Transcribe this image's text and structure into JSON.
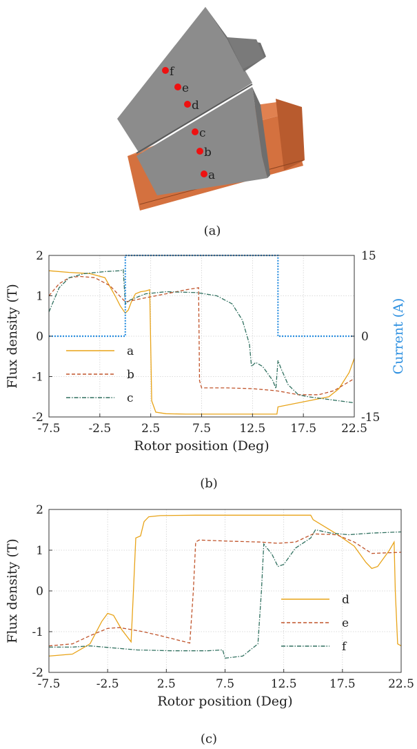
{
  "panel_a": {
    "caption": "(a)",
    "points": [
      "a",
      "b",
      "c",
      "d",
      "e",
      "f"
    ]
  },
  "panel_b": {
    "caption": "(b)"
  },
  "panel_c": {
    "caption": "(c)"
  },
  "chart_data": [
    {
      "type": "line",
      "panel": "b",
      "xlabel": "Rotor position (Deg)",
      "ylabel": "Flux density (T)",
      "y2label": "Current (A)",
      "xlim": [
        -7.5,
        22.5
      ],
      "ylim": [
        -2,
        2
      ],
      "y2lim": [
        -15,
        15
      ],
      "xticks": [
        "-7.5",
        "-2.5",
        "2.5",
        "7.5",
        "12.5",
        "17.5",
        "22.5"
      ],
      "yticks": [
        "-2",
        "-1",
        "0",
        "1",
        "2"
      ],
      "y2ticks": [
        "-15",
        "0",
        "15"
      ],
      "grid": true,
      "legend_position": "bottom-left",
      "series": [
        {
          "name": "a",
          "color": "#e8a317",
          "dash": "solid",
          "x": [
            -7.5,
            -5.5,
            -3.5,
            -2.0,
            -1.0,
            -0.5,
            0.0,
            0.3,
            0.6,
            1.0,
            1.5,
            2.0,
            2.4,
            2.6,
            3.0,
            4.0,
            6.0,
            9.0,
            12.0,
            14.9,
            15.0,
            18.0,
            20.0,
            21.0,
            22.0,
            22.5
          ],
          "y": [
            1.62,
            1.58,
            1.55,
            1.45,
            1.0,
            0.75,
            0.57,
            0.65,
            0.85,
            1.05,
            1.1,
            1.12,
            1.15,
            -1.6,
            -1.88,
            -1.92,
            -1.93,
            -1.93,
            -1.93,
            -1.93,
            -1.75,
            -1.6,
            -1.5,
            -1.3,
            -0.9,
            -0.55
          ]
        },
        {
          "name": "b",
          "color": "#c0532a",
          "dash": "dashed",
          "x": [
            -7.5,
            -6.5,
            -5.5,
            -4.5,
            -3.0,
            -1.5,
            0.0,
            2.0,
            4.0,
            6.0,
            7.2,
            7.3,
            7.5,
            10.0,
            12.5,
            14.8,
            15.5,
            17.0,
            19.0,
            20.5,
            22.5
          ],
          "y": [
            1.0,
            1.3,
            1.45,
            1.48,
            1.45,
            1.25,
            0.85,
            0.95,
            1.05,
            1.15,
            1.2,
            -1.1,
            -1.28,
            -1.28,
            -1.3,
            -1.35,
            -1.38,
            -1.45,
            -1.45,
            -1.35,
            -1.05
          ]
        },
        {
          "name": "c",
          "color": "#2e6f5e",
          "dash": "dashdot",
          "x": [
            -7.5,
            -6.5,
            -5.5,
            -4.0,
            -2.0,
            -0.5,
            -0.2,
            0.0,
            0.5,
            2.0,
            4.0,
            7.0,
            9.0,
            10.5,
            11.5,
            12.2,
            12.4,
            12.8,
            13.5,
            14.5,
            14.8,
            15.0,
            15.3,
            16.0,
            17.0,
            18.0,
            19.5,
            21.0,
            22.5
          ],
          "y": [
            0.6,
            1.2,
            1.45,
            1.55,
            1.6,
            1.62,
            1.65,
            0.8,
            0.9,
            1.05,
            1.1,
            1.08,
            1.0,
            0.8,
            0.4,
            -0.2,
            -0.75,
            -0.65,
            -0.75,
            -1.1,
            -1.3,
            -0.6,
            -0.8,
            -1.2,
            -1.45,
            -1.5,
            -1.55,
            -1.6,
            -1.65
          ]
        },
        {
          "name": "",
          "color": "#2b8fe0",
          "dash": "dotted",
          "axis": "right",
          "x": [
            -7.5,
            0.0,
            0.0,
            15.0,
            15.0,
            22.5
          ],
          "y": [
            0,
            0,
            15,
            15,
            0,
            0
          ]
        }
      ]
    },
    {
      "type": "line",
      "panel": "c",
      "xlabel": "Rotor position (Deg)",
      "ylabel": "Flux density (T)",
      "xlim": [
        -7.5,
        22.5
      ],
      "ylim": [
        -2,
        2
      ],
      "xticks": [
        "-7.5",
        "-2.5",
        "2.5",
        "7.5",
        "12.5",
        "17.5",
        "22.5"
      ],
      "yticks": [
        "-2",
        "-1",
        "0",
        "1",
        "2"
      ],
      "grid": true,
      "legend_position": "right-middle",
      "series": [
        {
          "name": "d",
          "color": "#e8a317",
          "dash": "solid",
          "x": [
            -7.5,
            -5.5,
            -4.0,
            -3.0,
            -2.5,
            -2.0,
            -1.3,
            -0.5,
            -0.3,
            -0.1,
            0.3,
            0.6,
            1.0,
            2.0,
            5.0,
            10.0,
            14.8,
            15.0,
            17.0,
            18.5,
            19.5,
            20.0,
            20.5,
            21.5,
            21.9,
            22.0,
            22.2,
            22.5
          ],
          "y": [
            -1.6,
            -1.55,
            -1.3,
            -0.75,
            -0.55,
            -0.6,
            -0.95,
            -1.25,
            0.0,
            1.3,
            1.35,
            1.7,
            1.82,
            1.85,
            1.86,
            1.86,
            1.86,
            1.75,
            1.4,
            1.1,
            0.7,
            0.55,
            0.6,
            1.0,
            1.2,
            0.0,
            -1.3,
            -1.35
          ]
        },
        {
          "name": "e",
          "color": "#c0532a",
          "dash": "dashed",
          "x": [
            -7.5,
            -5.5,
            -4.0,
            -2.5,
            -1.5,
            -0.5,
            0.5,
            2.0,
            4.5,
            4.8,
            5.0,
            5.3,
            8.0,
            10.5,
            12.0,
            13.5,
            15.0,
            17.0,
            18.5,
            20.0,
            22.5
          ],
          "y": [
            -1.35,
            -1.3,
            -1.1,
            -0.92,
            -0.9,
            -0.95,
            -1.0,
            -1.1,
            -1.28,
            0.0,
            1.2,
            1.25,
            1.22,
            1.2,
            1.17,
            1.2,
            1.4,
            1.38,
            1.2,
            0.92,
            0.95
          ]
        },
        {
          "name": "f",
          "color": "#2e6f5e",
          "dash": "dashdot",
          "x": [
            -7.5,
            -5.5,
            -4.0,
            -2.0,
            0.0,
            3.0,
            6.0,
            7.3,
            7.5,
            9.0,
            10.3,
            10.6,
            10.8,
            11.5,
            12.0,
            12.5,
            13.5,
            14.8,
            15.2,
            16.5,
            18.0,
            20.0,
            22.5
          ],
          "y": [
            -1.38,
            -1.38,
            -1.35,
            -1.4,
            -1.45,
            -1.47,
            -1.47,
            -1.45,
            -1.65,
            -1.6,
            -1.3,
            0.0,
            1.15,
            0.9,
            0.6,
            0.65,
            1.05,
            1.3,
            1.5,
            1.42,
            1.38,
            1.42,
            1.45
          ]
        }
      ]
    }
  ]
}
